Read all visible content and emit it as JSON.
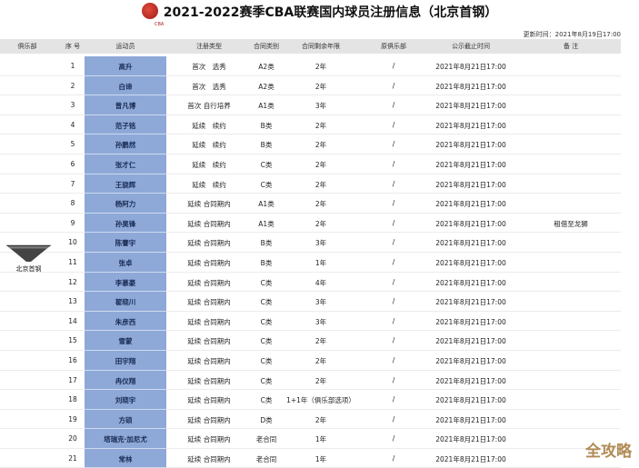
{
  "title": "2021-2022赛季CBA联赛国内球员注册信息（北京首钢）",
  "logo_text": "CBA",
  "update_time": "更新时间：2021年8月19日17:00",
  "headers": [
    "俱乐部",
    "序 号",
    "运动员",
    "注册类型",
    "合同类别",
    "合同剩余年限",
    "原俱乐部",
    "公示截止时间",
    "备 注"
  ],
  "club": "北京首钢",
  "watermark": "全攻略",
  "colors": {
    "name_cell": "#8ea9d8",
    "header_bg": "#e4e4e4"
  },
  "rows": [
    {
      "no": "1",
      "name": "高升",
      "reg": "首次　选秀",
      "cat": "A2类",
      "years": "2年",
      "orig": "/",
      "deadline": "2021年8月21日17:00",
      "note": ""
    },
    {
      "no": "2",
      "name": "白谛",
      "reg": "首次　选秀",
      "cat": "A2类",
      "years": "2年",
      "orig": "/",
      "deadline": "2021年8月21日17:00",
      "note": ""
    },
    {
      "no": "3",
      "name": "曾凡博",
      "reg": "首次 自行培养",
      "cat": "A1类",
      "years": "3年",
      "orig": "/",
      "deadline": "2021年8月21日17:00",
      "note": ""
    },
    {
      "no": "4",
      "name": "范子铭",
      "reg": "延续　续约",
      "cat": "B类",
      "years": "2年",
      "orig": "/",
      "deadline": "2021年8月21日17:00",
      "note": ""
    },
    {
      "no": "5",
      "name": "孙鹏然",
      "reg": "延续　续约",
      "cat": "B类",
      "years": "2年",
      "orig": "/",
      "deadline": "2021年8月21日17:00",
      "note": ""
    },
    {
      "no": "6",
      "name": "张才仁",
      "reg": "延续　续约",
      "cat": "C类",
      "years": "2年",
      "orig": "/",
      "deadline": "2021年8月21日17:00",
      "note": ""
    },
    {
      "no": "7",
      "name": "王骁辉",
      "reg": "延续　续约",
      "cat": "C类",
      "years": "2年",
      "orig": "/",
      "deadline": "2021年8月21日17:00",
      "note": ""
    },
    {
      "no": "8",
      "name": "杨阿力",
      "reg": "延续 合同期内",
      "cat": "A1类",
      "years": "2年",
      "orig": "/",
      "deadline": "2021年8月21日17:00",
      "note": ""
    },
    {
      "no": "9",
      "name": "孙昊锋",
      "reg": "延续 合同期内",
      "cat": "A1类",
      "years": "2年",
      "orig": "/",
      "deadline": "2021年8月21日17:00",
      "note": "租借至龙狮"
    },
    {
      "no": "10",
      "name": "陈謇宇",
      "reg": "延续 合同期内",
      "cat": "B类",
      "years": "3年",
      "orig": "/",
      "deadline": "2021年8月21日17:00",
      "note": ""
    },
    {
      "no": "11",
      "name": "张卓",
      "reg": "延续 合同期内",
      "cat": "B类",
      "years": "1年",
      "orig": "/",
      "deadline": "2021年8月21日17:00",
      "note": ""
    },
    {
      "no": "12",
      "name": "李慕豪",
      "reg": "延续 合同期内",
      "cat": "C类",
      "years": "4年",
      "orig": "/",
      "deadline": "2021年8月21日17:00",
      "note": ""
    },
    {
      "no": "13",
      "name": "翟晓川",
      "reg": "延续 合同期内",
      "cat": "C类",
      "years": "3年",
      "orig": "/",
      "deadline": "2021年8月21日17:00",
      "note": ""
    },
    {
      "no": "14",
      "name": "朱彦西",
      "reg": "延续 合同期内",
      "cat": "C类",
      "years": "3年",
      "orig": "/",
      "deadline": "2021年8月21日17:00",
      "note": ""
    },
    {
      "no": "15",
      "name": "雪蒙",
      "reg": "延续 合同期内",
      "cat": "C类",
      "years": "2年",
      "orig": "/",
      "deadline": "2021年8月21日17:00",
      "note": ""
    },
    {
      "no": "16",
      "name": "田宇翔",
      "reg": "延续 合同期内",
      "cat": "C类",
      "years": "2年",
      "orig": "/",
      "deadline": "2021年8月21日17:00",
      "note": ""
    },
    {
      "no": "17",
      "name": "冉仪翔",
      "reg": "延续 合同期内",
      "cat": "C类",
      "years": "2年",
      "orig": "/",
      "deadline": "2021年8月21日17:00",
      "note": ""
    },
    {
      "no": "18",
      "name": "刘晓宇",
      "reg": "延续 合同期内",
      "cat": "C类",
      "years": "1+1年（俱乐部选项）",
      "orig": "/",
      "deadline": "2021年8月21日17:00",
      "note": ""
    },
    {
      "no": "19",
      "name": "方硕",
      "reg": "延续 合同期内",
      "cat": "D类",
      "years": "2年",
      "orig": "/",
      "deadline": "2021年8月21日17:00",
      "note": ""
    },
    {
      "no": "20",
      "name": "塔瑞克·加尼尤",
      "reg": "延续 合同期内",
      "cat": "老合同",
      "years": "1年",
      "orig": "/",
      "deadline": "2021年8月21日17:00",
      "note": ""
    },
    {
      "no": "21",
      "name": "常林",
      "reg": "延续 合同期内",
      "cat": "老合同",
      "years": "1年",
      "orig": "/",
      "deadline": "2021年8月21日17:00",
      "note": ""
    }
  ]
}
